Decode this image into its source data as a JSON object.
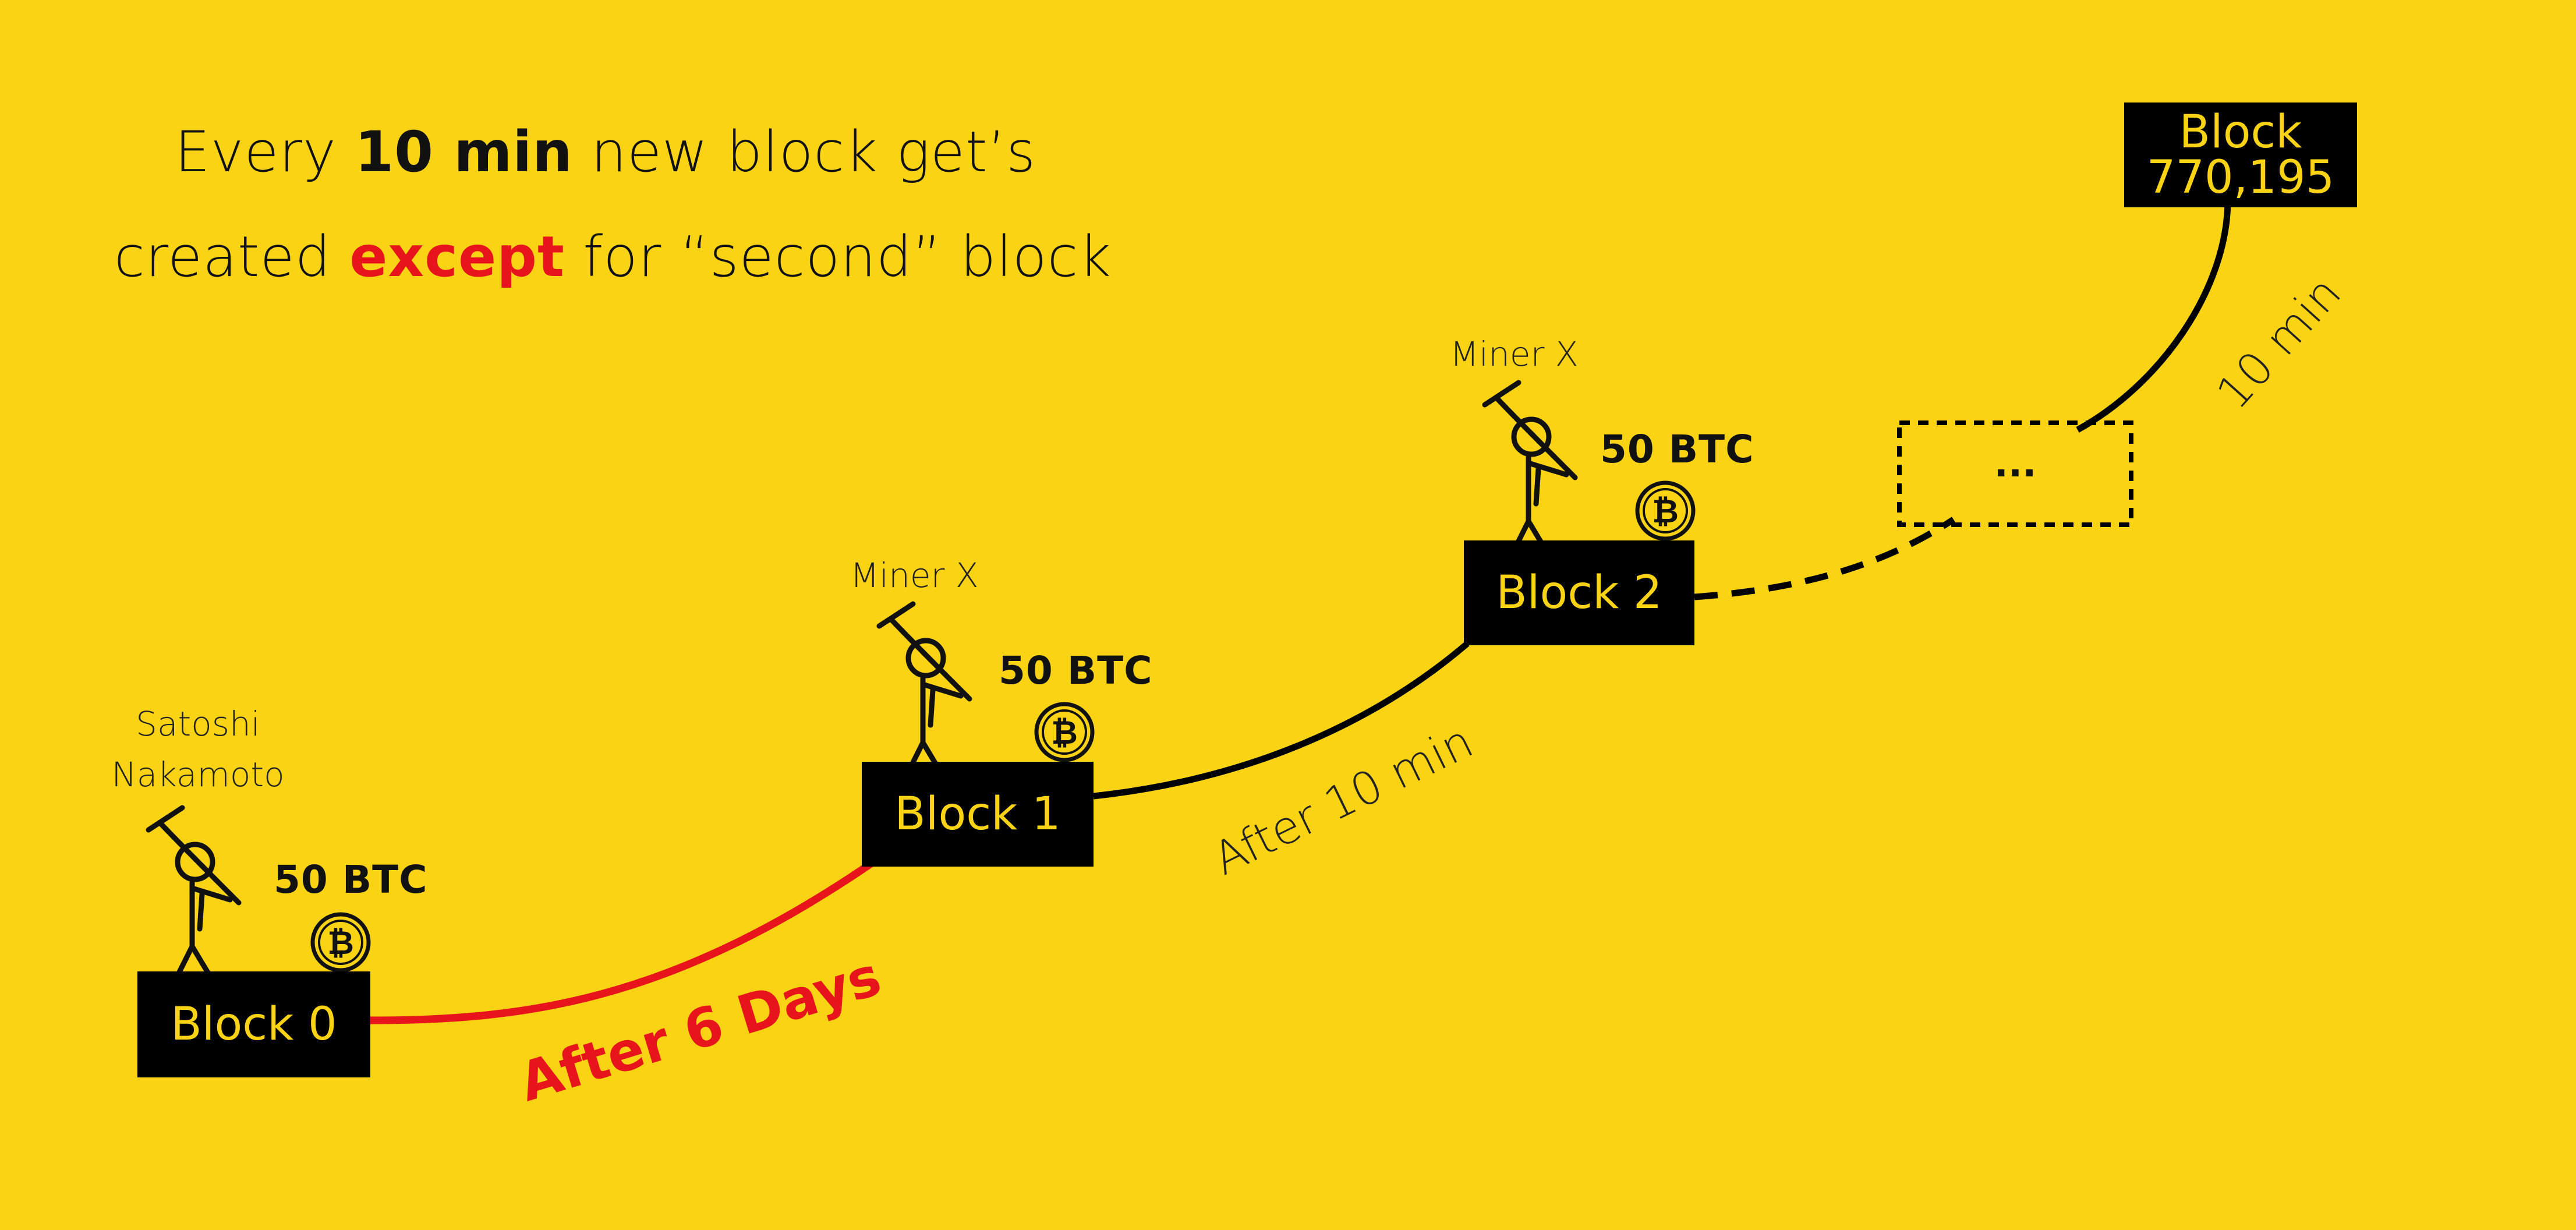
{
  "headline": {
    "line1_prefix": "Every ",
    "line1_bold": "10 min",
    "line1_suffix": " new block get’s",
    "line2_prefix": "created ",
    "line2_highlight": "except",
    "line2_suffix": " for “second” block"
  },
  "blocks": [
    {
      "label": "Block 0"
    },
    {
      "label": "Block 1"
    },
    {
      "label": "Block 2"
    },
    {
      "label": "..."
    },
    {
      "label_line1": "Block",
      "label_line2": "770,195"
    }
  ],
  "miners": {
    "block0": {
      "name_line1": "Satoshi",
      "name_line2": "Nakamoto",
      "reward": "50 BTC"
    },
    "block1": {
      "name": "Miner X",
      "reward": "50 BTC"
    },
    "block2": {
      "name": "Miner X",
      "reward": "50 BTC"
    }
  },
  "intervals": {
    "first": "After 6 Days",
    "regular": "After 10 min",
    "final": "10 min"
  },
  "colors": {
    "background": "#FAD414",
    "block_fill": "#000000",
    "block_text": "#FAD414",
    "highlight_red": "#E8141B",
    "line_black": "#000000"
  },
  "icons": [
    "miner-with-pickaxe-icon",
    "bitcoin-coin-icon"
  ]
}
